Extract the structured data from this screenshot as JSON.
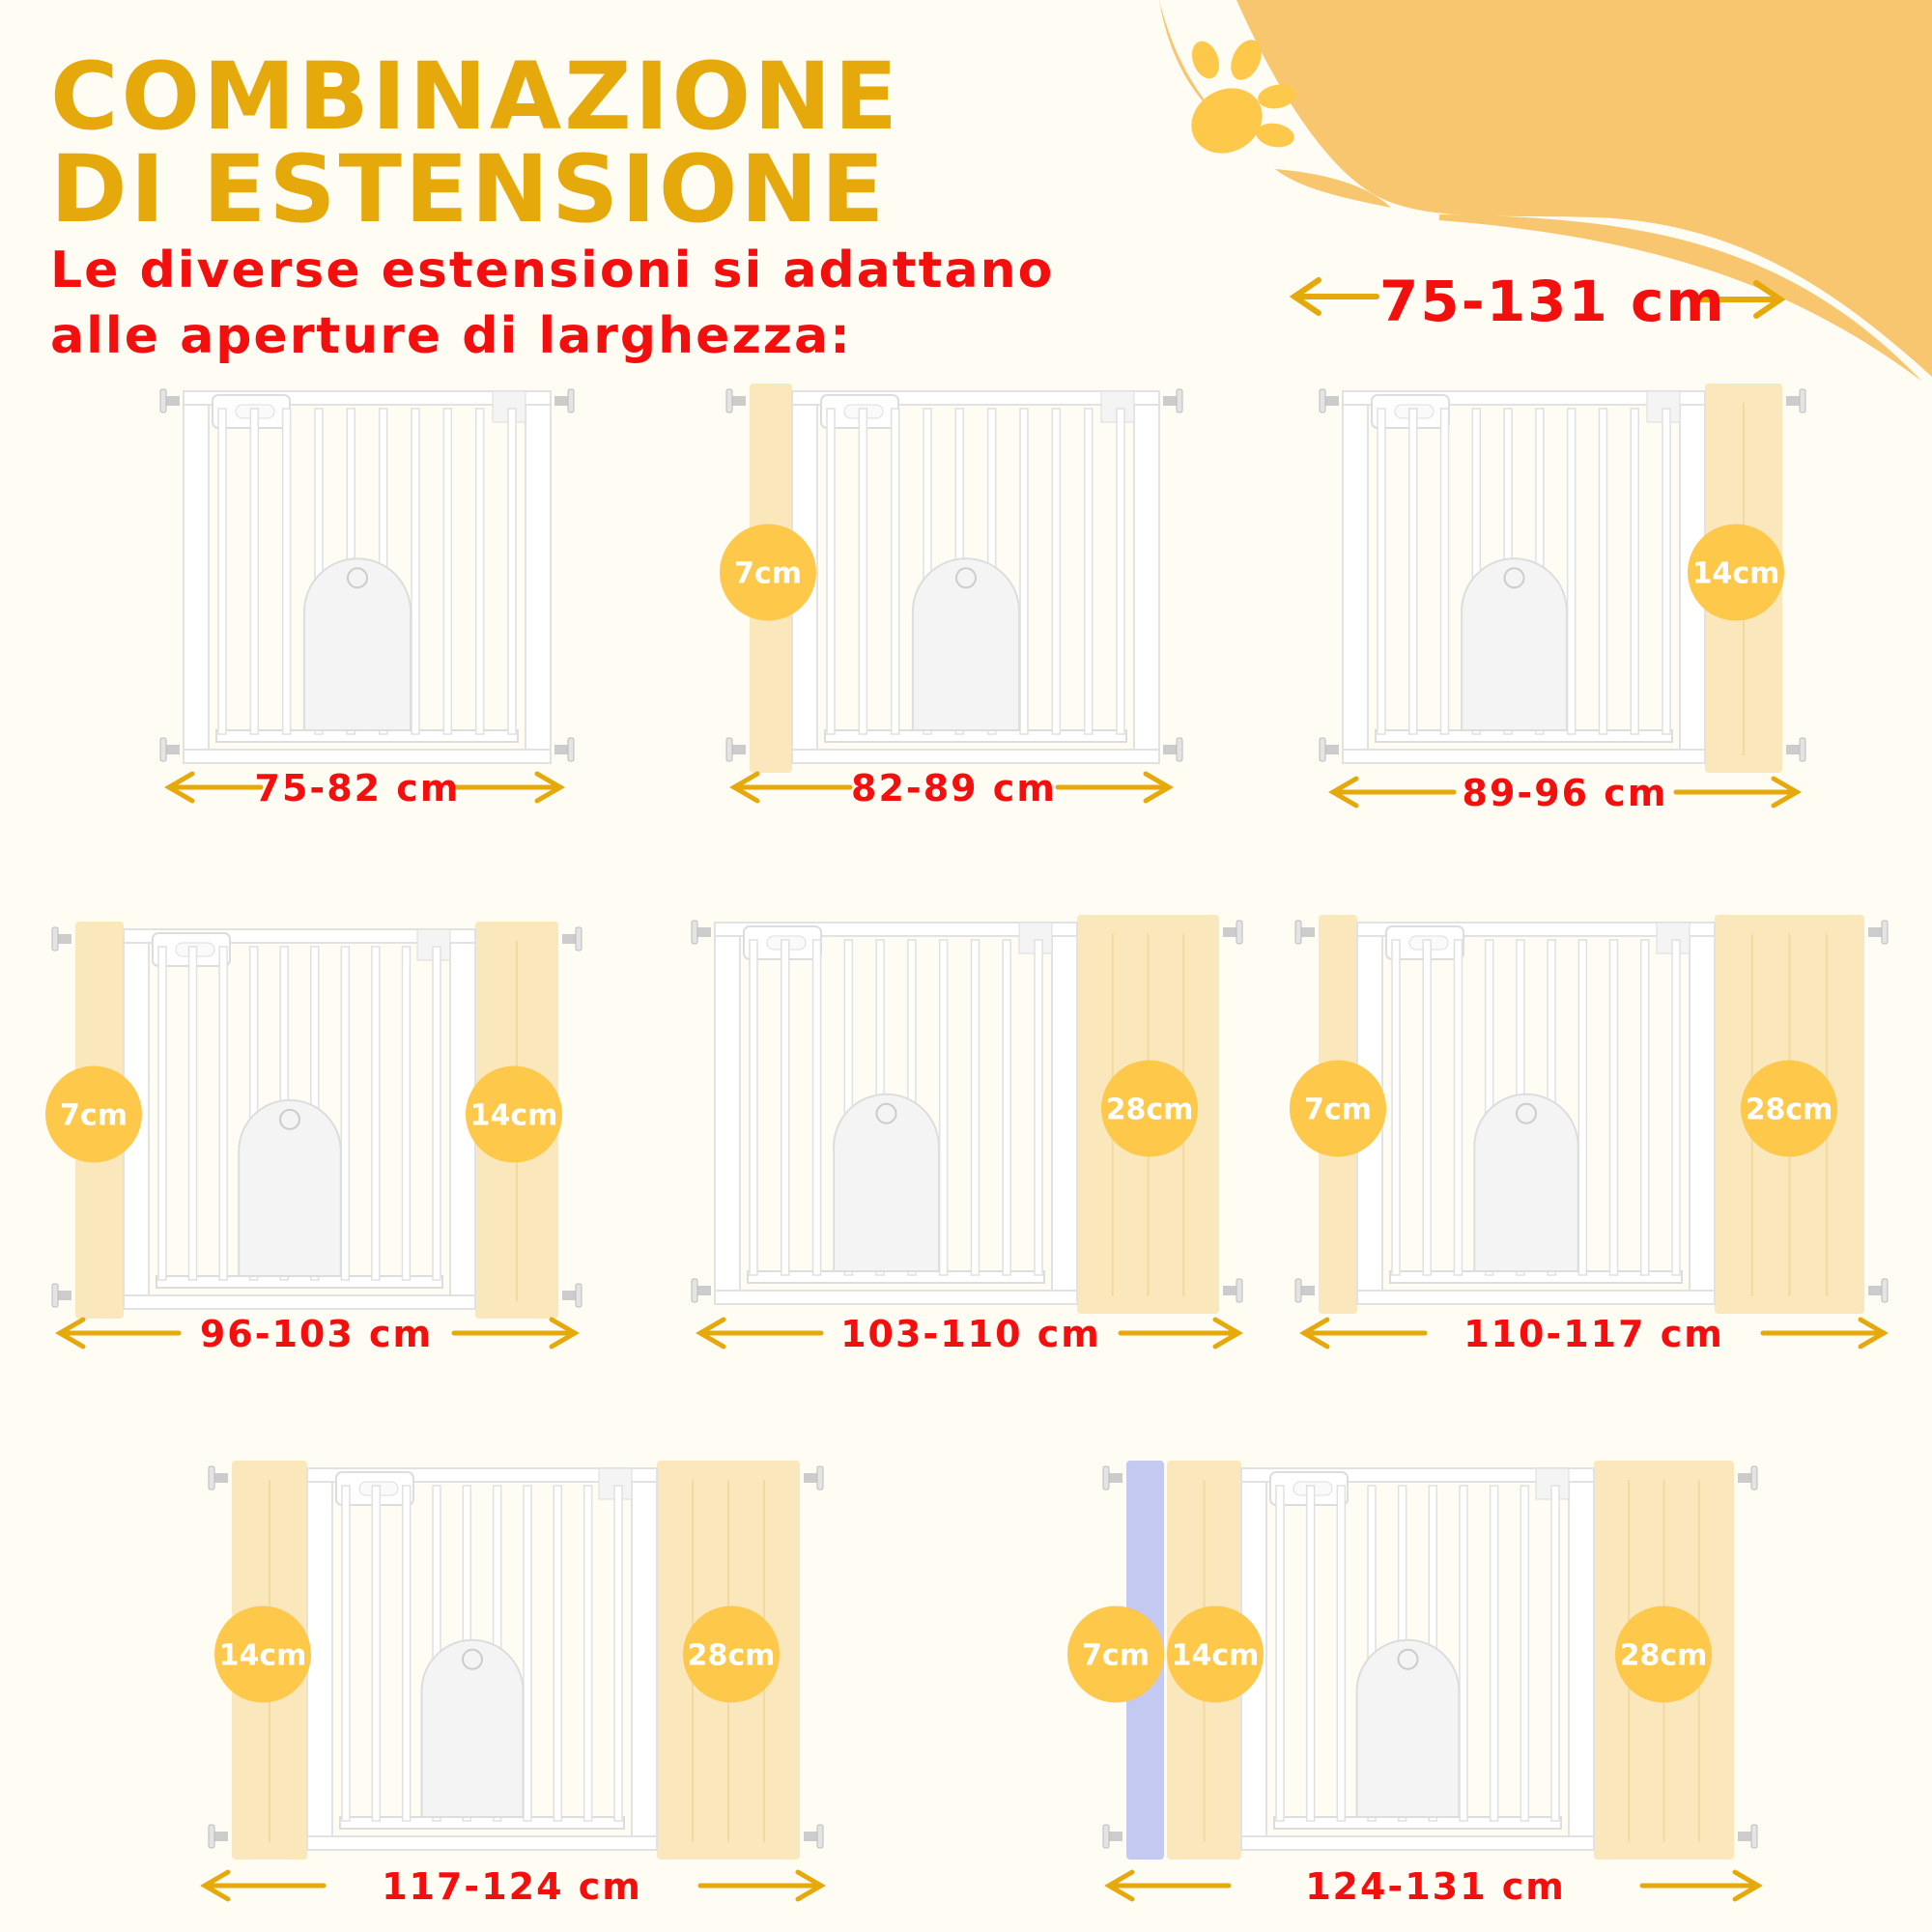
{
  "header": {
    "title_line1": "COMBINAZIONE",
    "title_line2": "DI ESTENSIONE",
    "subtitle_line1": "Le diverse estensioni si adattano",
    "subtitle_line2": "alle aperture di larghezza:",
    "overall_range": "75-131 cm"
  },
  "colors": {
    "title": "#e6a90b",
    "text_red": "#f40f0f",
    "arrow": "#e6a90b",
    "badge": "#fec84a",
    "extension": "#f9e3b0",
    "extension_7cm_extra": "#b9bff0",
    "wave": "#f7c66f",
    "paw": "#fec84a",
    "background": "#fffcf3"
  },
  "icons": {
    "decoration": "paw-print-icon"
  },
  "configurations": [
    {
      "range": "75-82 cm",
      "extensions": []
    },
    {
      "range": "82-89 cm",
      "extensions": [
        {
          "side": "left",
          "label": "7cm"
        }
      ]
    },
    {
      "range": "89-96 cm",
      "extensions": [
        {
          "side": "right",
          "label": "14cm"
        }
      ]
    },
    {
      "range": "96-103 cm",
      "extensions": [
        {
          "side": "left",
          "label": "7cm"
        },
        {
          "side": "right",
          "label": "14cm"
        }
      ]
    },
    {
      "range": "103-110 cm",
      "extensions": [
        {
          "side": "right",
          "label": "28cm"
        }
      ]
    },
    {
      "range": "110-117 cm",
      "extensions": [
        {
          "side": "left",
          "label": "7cm"
        },
        {
          "side": "right",
          "label": "28cm"
        }
      ]
    },
    {
      "range": "117-124 cm",
      "extensions": [
        {
          "side": "left",
          "label": "14cm"
        },
        {
          "side": "right",
          "label": "28cm"
        }
      ]
    },
    {
      "range": "124-131 cm",
      "extensions": [
        {
          "side": "left",
          "label": "7cm",
          "highlight": true
        },
        {
          "side": "left",
          "label": "14cm"
        },
        {
          "side": "right",
          "label": "28cm"
        }
      ]
    }
  ]
}
